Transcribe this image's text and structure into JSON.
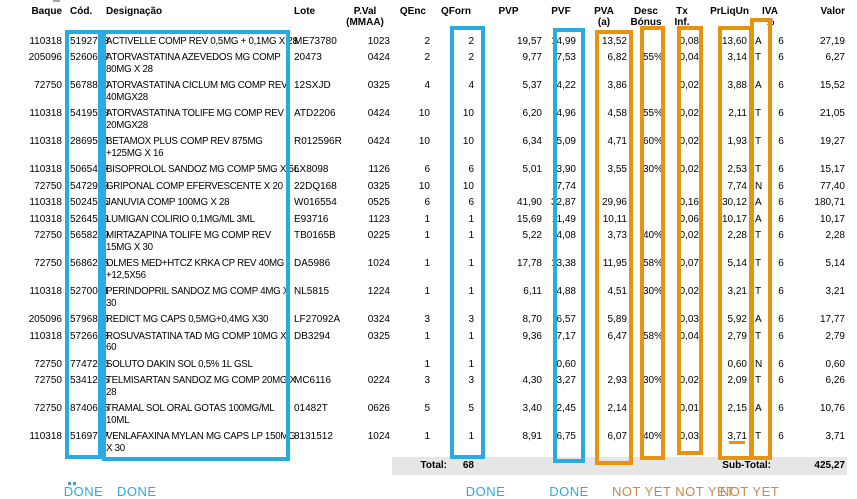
{
  "accent": {
    "highlight_blue": "#29ABE2",
    "highlight_orange": "#E8920E",
    "done_text": "#29ABE2",
    "notyet_text": "#C98A50",
    "total_bar_bg": "#E6E6E6"
  },
  "table": {
    "headers": {
      "baque": "Baque",
      "cod": "Cód.",
      "designacao": "Designação",
      "lote": "Lote",
      "pval": "P.Val\n(MMAA)",
      "qenc": "QEnc",
      "qforn": "QForn",
      "pvp": "PVP",
      "pvf": "PVF",
      "pva": "PVA\n(a)",
      "desc": "Desc\nBónus",
      "tx": "Tx\nInf.",
      "prliq": "PrLiqUn",
      "iva": "IVA\n%",
      "valor": "Valor"
    },
    "rows": [
      {
        "baque": "110318",
        "cod": "5192703",
        "designacao": "ACTIVELLE COMP REV 0,5MG + 0,1MG X 28",
        "lote": "ME73780",
        "pval": "1023",
        "qenc": "2",
        "qforn": "2",
        "pvp": "19,57",
        "pvf": "14,99",
        "pva": "13,52",
        "desc": "",
        "tx": "0,08",
        "prliq": "13,60",
        "letter": "A",
        "iva": "6",
        "valor": "27,19"
      },
      {
        "baque": "205096",
        "cod": "5260617",
        "designacao": "ATORVASTATINA AZEVEDOS MG COMP\n80MG X 28",
        "lote": "20473",
        "pval": "0424",
        "qenc": "2",
        "qforn": "2",
        "pvp": "9,77",
        "pvf": "7,53",
        "pva": "6,82",
        "desc": "55%",
        "tx": "0,04",
        "prliq": "3,14",
        "letter": "T",
        "iva": "6",
        "valor": "6,27"
      },
      {
        "baque": "72750",
        "cod": "5678800",
        "designacao": "ATORVASTATINA CICLUM MG COMP REV\n40MGX28",
        "lote": "12SXJD",
        "pval": "0325",
        "qenc": "4",
        "qforn": "4",
        "pvp": "5,37",
        "pvf": "4,22",
        "pva": "3,86",
        "desc": "",
        "tx": "0,02",
        "prliq": "3,88",
        "letter": "A",
        "iva": "6",
        "valor": "15,52"
      },
      {
        "baque": "110318",
        "cod": "5419528",
        "designacao": "ATORVASTATINA TOLIFE MG COMP REV\n20MGX28",
        "lote": "ATD2206",
        "pval": "0424",
        "qenc": "10",
        "qforn": "10",
        "pvp": "6,20",
        "pvf": "4,96",
        "pva": "4,58",
        "desc": "55%",
        "tx": "0,02",
        "prliq": "2,11",
        "letter": "T",
        "iva": "6",
        "valor": "21,05"
      },
      {
        "baque": "110318",
        "cod": "2869584",
        "designacao": "BETAMOX PLUS COMP REV 875MG\n+125MG X 16",
        "lote": "R012596R",
        "pval": "0424",
        "qenc": "10",
        "qforn": "10",
        "pvp": "6,34",
        "pvf": "5,09",
        "pva": "4,71",
        "desc": "60%",
        "tx": "0,02",
        "prliq": "1,93",
        "letter": "T",
        "iva": "6",
        "valor": "19,27"
      },
      {
        "baque": "110318",
        "cod": "5065487",
        "designacao": "BISOPROLOL SANDOZ MG COMP 5MG X 56",
        "lote": "LX8098",
        "pval": "1126",
        "qenc": "6",
        "qforn": "6",
        "pvp": "5,01",
        "pvf": "3,90",
        "pva": "3,55",
        "desc": "30%",
        "tx": "0,02",
        "prliq": "2,53",
        "letter": "T",
        "iva": "6",
        "valor": "15,17"
      },
      {
        "baque": "72750",
        "cod": "5472949",
        "designacao": "GRIPONAL COMP EFERVESCENTE X 20",
        "lote": "22DQ168",
        "pval": "0325",
        "qenc": "10",
        "qforn": "10",
        "pvp": "",
        "pvf": "7,74",
        "pva": "",
        "desc": "",
        "tx": "",
        "prliq": "7,74",
        "letter": "N",
        "iva": "6",
        "valor": "77,40"
      },
      {
        "baque": "110318",
        "cod": "5024575",
        "designacao": "JANUVIA COMP 100MG X 28",
        "lote": "W016554",
        "pval": "0525",
        "qenc": "6",
        "qforn": "6",
        "pvp": "41,90",
        "pvf": "32,87",
        "pva": "29,96",
        "desc": "",
        "tx": "0,16",
        "prliq": "30,12",
        "letter": "A",
        "iva": "6",
        "valor": "180,71"
      },
      {
        "baque": "110318",
        "cod": "5264528",
        "designacao": "LUMIGAN COLIRIO 0,1MG/ML 3ML",
        "lote": "E93716",
        "pval": "1123",
        "qenc": "1",
        "qforn": "1",
        "pvp": "15,69",
        "pvf": "11,49",
        "pva": "10,11",
        "desc": "",
        "tx": "0,06",
        "prliq": "10,17",
        "letter": "A",
        "iva": "6",
        "valor": "10,17"
      },
      {
        "baque": "72750",
        "cod": "5658299",
        "designacao": "MIRTAZAPINA TOLIFE MG COMP REV\n15MG X 30",
        "lote": "TB0165B",
        "pval": "0225",
        "qenc": "1",
        "qforn": "1",
        "pvp": "5,22",
        "pvf": "4,08",
        "pva": "3,73",
        "desc": "40%",
        "tx": "0,02",
        "prliq": "2,28",
        "letter": "T",
        "iva": "6",
        "valor": "2,28"
      },
      {
        "baque": "72750",
        "cod": "5686225",
        "designacao": "OLMES MED+HTCZ KRKA CP REV 40MG\n+12,5X56",
        "lote": "DA5986",
        "pval": "1024",
        "qenc": "1",
        "qforn": "1",
        "pvp": "17,78",
        "pvf": "13,38",
        "pva": "11,95",
        "desc": "58%",
        "tx": "0,07",
        "prliq": "5,14",
        "letter": "T",
        "iva": "6",
        "valor": "5,14"
      },
      {
        "baque": "110318",
        "cod": "5270061",
        "designacao": "PERINDOPRIL SANDOZ MG COMP 4MG X\n30",
        "lote": "NL5815",
        "pval": "1224",
        "qenc": "1",
        "qforn": "1",
        "pvp": "6,11",
        "pvf": "4,88",
        "pva": "4,51",
        "desc": "30%",
        "tx": "0,02",
        "prliq": "3,21",
        "letter": "T",
        "iva": "6",
        "valor": "3,21"
      },
      {
        "baque": "205096",
        "cod": "5796875",
        "designacao": "REDICT MG CAPS 0,5MG+0,4MG X30",
        "lote": "LF27092A",
        "pval": "0324",
        "qenc": "3",
        "qforn": "3",
        "pvp": "8,70",
        "pvf": "6,57",
        "pva": "5,89",
        "desc": "",
        "tx": "0,03",
        "prliq": "5,92",
        "letter": "A",
        "iva": "6",
        "valor": "17,77"
      },
      {
        "baque": "110318",
        "cod": "5726633",
        "designacao": "ROSUVASTATINA TAD MG COMP 10MG X\n60",
        "lote": "DB3294",
        "pval": "0325",
        "qenc": "1",
        "qforn": "1",
        "pvp": "9,36",
        "pvf": "7,17",
        "pva": "6,47",
        "desc": "58%",
        "tx": "0,04",
        "prliq": "2,79",
        "letter": "T",
        "iva": "6",
        "valor": "2,79"
      },
      {
        "baque": "72750",
        "cod": "7747246",
        "designacao": "SOLUTO DAKIN SOL 0,5% 1L GSL",
        "lote": "",
        "pval": "",
        "qenc": "1",
        "qforn": "1",
        "pvp": "",
        "pvf": "0,60",
        "pva": "",
        "desc": "",
        "tx": "",
        "prliq": "0,60",
        "letter": "N",
        "iva": "6",
        "valor": "0,60"
      },
      {
        "baque": "72750",
        "cod": "5341235",
        "designacao": "TELMISARTAN SANDOZ MG COMP 20MG X\n28",
        "lote": "MC6116",
        "pval": "0224",
        "qenc": "3",
        "qforn": "3",
        "pvp": "4,30",
        "pvf": "3,27",
        "pva": "2,93",
        "desc": "30%",
        "tx": "0,02",
        "prliq": "2,09",
        "letter": "T",
        "iva": "6",
        "valor": "6,26"
      },
      {
        "baque": "72750",
        "cod": "8740605",
        "designacao": "TRAMAL SOL ORAL GOTAS 100MG/ML\n10ML",
        "lote": "01482T",
        "pval": "0626",
        "qenc": "5",
        "qforn": "5",
        "pvp": "3,40",
        "pvf": "2,45",
        "pva": "2,14",
        "desc": "",
        "tx": "0,01",
        "prliq": "2,15",
        "letter": "A",
        "iva": "6",
        "valor": "10,76"
      },
      {
        "baque": "110318",
        "cod": "5169727",
        "designacao": "VENLAFAXINA MYLAN MG CAPS LP 150MG\nX 30",
        "lote": "8131512",
        "pval": "1024",
        "qenc": "1",
        "qforn": "1",
        "pvp": "8,91",
        "pvf": "6,75",
        "pva": "6,07",
        "desc": "40%",
        "tx": "0,03",
        "prliq": "3,71",
        "letter": "T",
        "iva": "6",
        "valor": "3,71",
        "prliq_underline": true
      }
    ],
    "totals": {
      "total_label": "Total:",
      "total_qforn": "68",
      "subtotal_label": "Sub-Total:",
      "subtotal_value": "425,27"
    }
  },
  "annotations": {
    "boxes": [
      {
        "column": "cod",
        "type": "done"
      },
      {
        "column": "designacao",
        "type": "done"
      },
      {
        "column": "qforn",
        "type": "done"
      },
      {
        "column": "pvf",
        "type": "done"
      },
      {
        "column": "pva",
        "type": "not_yet"
      },
      {
        "column": "desc",
        "type": "not_yet"
      },
      {
        "column": "tx",
        "type": "not_yet"
      },
      {
        "column": "prliq",
        "type": "not_yet"
      },
      {
        "column": "letter",
        "type": "not_yet"
      }
    ],
    "labels": [
      {
        "text": "DONE",
        "type": "done",
        "anchor": "cod"
      },
      {
        "text": "DONE",
        "type": "done",
        "anchor": "designacao"
      },
      {
        "text": "DONE",
        "type": "done",
        "anchor": "qforn"
      },
      {
        "text": "DONE",
        "type": "done",
        "anchor": "pvf"
      },
      {
        "text": "NOT YET NOT YET",
        "type": "not_yet",
        "anchor": "pva"
      },
      {
        "text": "NOT YET",
        "type": "not_yet",
        "anchor": "prliq"
      }
    ]
  }
}
